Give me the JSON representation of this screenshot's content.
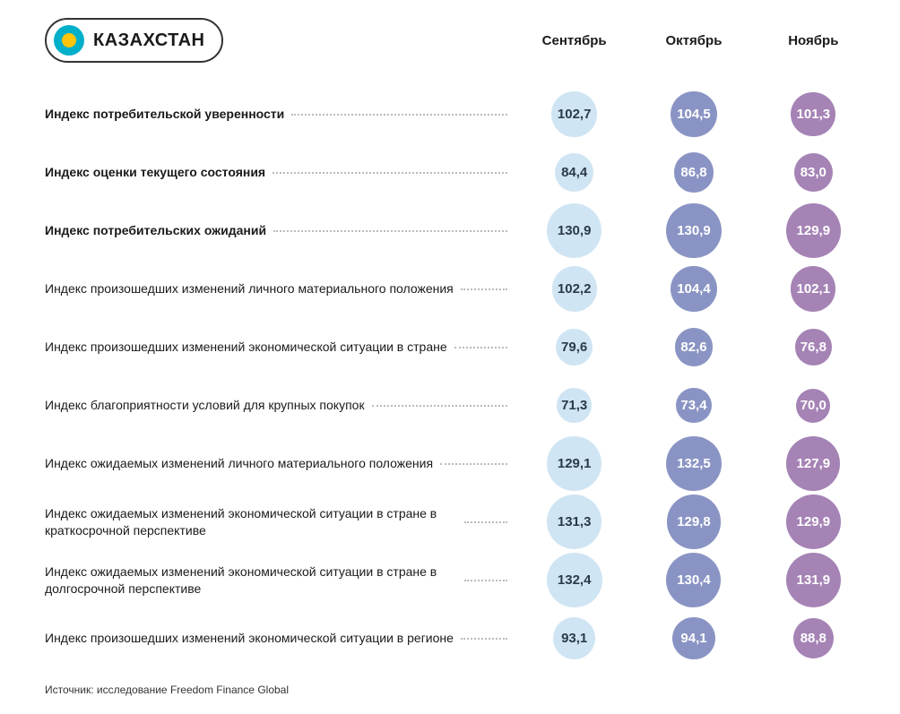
{
  "country": "КАЗАХСТАН",
  "months": [
    "Сентябрь",
    "Октябрь",
    "Ноябрь"
  ],
  "columnColors": [
    "#cfe5f3",
    "#8a94c4",
    "#a583b5"
  ],
  "columnTextColors": [
    "#2b3a4a",
    "#ffffff",
    "#ffffff"
  ],
  "bubbleMinSize": 38,
  "bubbleMaxSize": 62,
  "valueMin": 70,
  "valueMax": 133,
  "rows": [
    {
      "label": "Индекс потребительской уверенности",
      "bold": true,
      "values": [
        102.7,
        104.5,
        101.3
      ]
    },
    {
      "label": "Индекс оценки текущего состояния",
      "bold": true,
      "values": [
        84.4,
        86.8,
        83.0
      ]
    },
    {
      "label": "Индекс потребительских ожиданий",
      "bold": true,
      "values": [
        130.9,
        130.9,
        129.9
      ]
    },
    {
      "label": "Индекс произошедших изменений личного материального положения",
      "bold": false,
      "values": [
        102.2,
        104.4,
        102.1
      ]
    },
    {
      "label": "Индекс произошедших изменений экономической ситуации в стране",
      "bold": false,
      "values": [
        79.6,
        82.6,
        76.8
      ]
    },
    {
      "label": "Индекс благоприятности условий для крупных покупок",
      "bold": false,
      "values": [
        71.3,
        73.4,
        70.0
      ]
    },
    {
      "label": "Индекс ожидаемых изменений личного материального положения",
      "bold": false,
      "values": [
        129.1,
        132.5,
        127.9
      ]
    },
    {
      "label": "Индекс ожидаемых изменений экономической ситуации в стране в краткосрочной перспективе",
      "bold": false,
      "values": [
        131.3,
        129.8,
        129.9
      ]
    },
    {
      "label": "Индекс ожидаемых изменений экономической ситуации в стране в долгосрочной перспективе",
      "bold": false,
      "values": [
        132.4,
        130.4,
        131.9
      ]
    },
    {
      "label": "Индекс произошедших изменений экономической ситуации в регионе",
      "bold": false,
      "values": [
        93.1,
        94.1,
        88.8
      ]
    }
  ],
  "source": "Источник: исследование Freedom Finance Global"
}
